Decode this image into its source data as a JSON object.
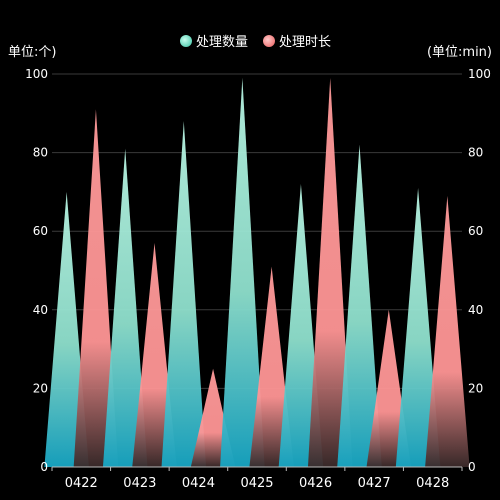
{
  "chart_data": {
    "type": "bar",
    "bar_shape": "triangle",
    "categories": [
      "0422",
      "0423",
      "0424",
      "0425",
      "0426",
      "0427",
      "0428"
    ],
    "series": [
      {
        "name": "处理数量",
        "axis": "left",
        "color": "#7fe3c8",
        "values": [
          70,
          81,
          88,
          99,
          72,
          82,
          71
        ]
      },
      {
        "name": "处理时长",
        "axis": "right",
        "color": "#ff9a9a",
        "values": [
          91,
          57,
          25,
          51,
          99,
          40,
          69
        ]
      }
    ],
    "ylabel_left": "单位:个)",
    "ylabel_right": "(单位:min)",
    "ylim": [
      0,
      100
    ],
    "yticks": [
      "0",
      "20",
      "40",
      "60",
      "80",
      "100"
    ],
    "grid": true,
    "legend_position": "top-center",
    "background": "#000000",
    "gradient_bottom_colors": {
      "series1": "#17a6c4",
      "series2": "#3a2a2a"
    }
  }
}
